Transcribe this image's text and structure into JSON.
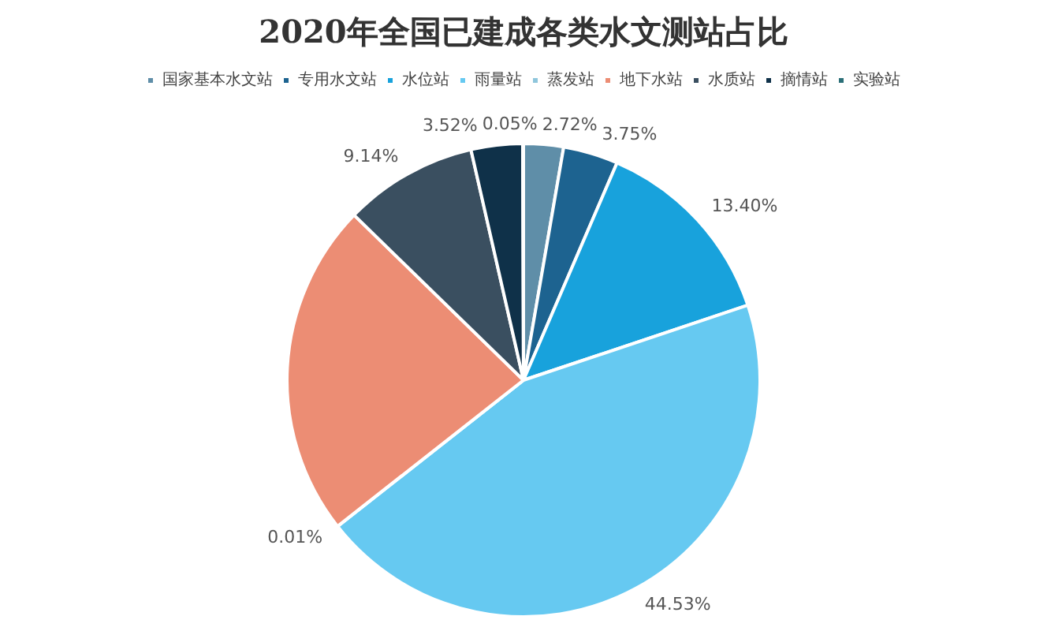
{
  "chart_data": {
    "type": "pie",
    "title": "2020年全国已建成各类水文测站占比",
    "categories": [
      "国家基本水文站",
      "专用水文站",
      "水位站",
      "雨量站",
      "蒸发站",
      "地下水站",
      "水质站",
      "摘情站",
      "实验站"
    ],
    "values": [
      2.72,
      3.75,
      13.4,
      44.53,
      0.01,
      22.88,
      9.14,
      3.52,
      0.05
    ],
    "value_labels": [
      "2.72%",
      "3.75%",
      "13.40%",
      "44.53%",
      "0.01%",
      null,
      "9.14%",
      "3.52%",
      "0.05%"
    ],
    "colors": [
      "#5f8ea8",
      "#1d6390",
      "#18a2dc",
      "#66c9f1",
      "#8fc6dc",
      "#ec8d74",
      "#3a4f60",
      "#0f3149",
      "#2b6f78"
    ],
    "legend": "top"
  }
}
